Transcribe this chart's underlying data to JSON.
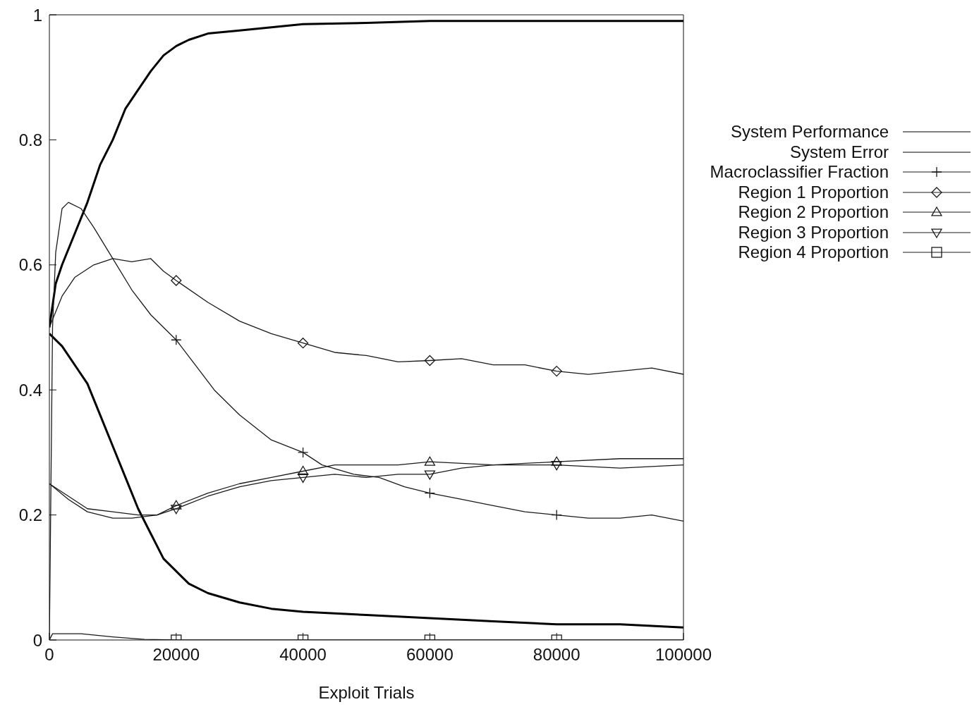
{
  "chart_data": {
    "type": "line",
    "xlabel": "Exploit Trials",
    "xlim": [
      0,
      100000
    ],
    "xticks": [
      0,
      20000,
      40000,
      60000,
      80000,
      100000
    ],
    "ylim": [
      0,
      1
    ],
    "yticks": [
      0,
      0.2,
      0.4,
      0.6,
      0.8,
      1
    ],
    "grid": false,
    "legend": "right",
    "line_style": "solid",
    "series": [
      {
        "name": "System Performance",
        "color": "#000000",
        "marker": "none",
        "x": [
          0,
          1000,
          2000,
          4000,
          6000,
          8000,
          10000,
          12000,
          14000,
          16000,
          18000,
          20000,
          22000,
          25000,
          30000,
          35000,
          40000,
          50000,
          60000,
          80000,
          100000
        ],
        "values": [
          0.5,
          0.57,
          0.6,
          0.65,
          0.7,
          0.76,
          0.8,
          0.85,
          0.88,
          0.91,
          0.935,
          0.95,
          0.96,
          0.97,
          0.975,
          0.98,
          0.985,
          0.987,
          0.99,
          0.99,
          0.99
        ]
      },
      {
        "name": "System Error",
        "color": "#000000",
        "marker": "none",
        "x": [
          0,
          2000,
          4000,
          6000,
          8000,
          10000,
          12000,
          14000,
          16000,
          18000,
          20000,
          22000,
          25000,
          30000,
          35000,
          40000,
          50000,
          60000,
          70000,
          80000,
          90000,
          100000
        ],
        "values": [
          0.49,
          0.47,
          0.44,
          0.41,
          0.36,
          0.31,
          0.26,
          0.21,
          0.17,
          0.13,
          0.11,
          0.09,
          0.075,
          0.06,
          0.05,
          0.045,
          0.04,
          0.035,
          0.03,
          0.025,
          0.025,
          0.02
        ]
      },
      {
        "name": "Macroclassifier Fraction",
        "color": "#1a1a1a",
        "x": [
          0,
          500,
          1000,
          2000,
          3000,
          5000,
          7000,
          10000,
          13000,
          16000,
          20000,
          23000,
          26000,
          30000,
          35000,
          40000,
          43000,
          48000,
          52000,
          56000,
          60000,
          65000,
          70000,
          75000,
          80000,
          85000,
          90000,
          95000,
          100000
        ],
        "values": [
          0,
          0.5,
          0.62,
          0.69,
          0.7,
          0.69,
          0.66,
          0.61,
          0.56,
          0.52,
          0.48,
          0.44,
          0.4,
          0.36,
          0.32,
          0.3,
          0.28,
          0.265,
          0.26,
          0.245,
          0.235,
          0.225,
          0.215,
          0.205,
          0.2,
          0.195,
          0.195,
          0.2,
          0.19
        ]
      },
      {
        "type": "scatter",
        "color": "#1a1a1a",
        "marker": "cross",
        "x": [
          20000,
          40000,
          60000,
          80000
        ],
        "values": [
          0.48,
          0.3,
          0.235,
          0.2
        ]
      },
      {
        "name": "Region 1 Proportion",
        "color": "#1a1a1a",
        "x": [
          0,
          2000,
          4000,
          7000,
          10000,
          13000,
          16000,
          18000,
          20000,
          25000,
          30000,
          35000,
          40000,
          45000,
          50000,
          55000,
          60000,
          65000,
          70000,
          75000,
          80000,
          85000,
          90000,
          95000,
          100000
        ],
        "values": [
          0.5,
          0.55,
          0.58,
          0.6,
          0.61,
          0.605,
          0.61,
          0.59,
          0.575,
          0.54,
          0.51,
          0.49,
          0.475,
          0.46,
          0.455,
          0.445,
          0.447,
          0.45,
          0.44,
          0.44,
          0.43,
          0.425,
          0.43,
          0.435,
          0.425
        ]
      },
      {
        "type": "scatter",
        "color": "#1a1a1a",
        "marker": "diamond",
        "x": [
          20000,
          40000,
          60000,
          80000
        ],
        "values": [
          0.575,
          0.475,
          0.447,
          0.43
        ]
      },
      {
        "name": "Region 2 Proportion",
        "color": "#1a1a1a",
        "x": [
          0,
          3000,
          6000,
          10000,
          14000,
          17000,
          20000,
          25000,
          30000,
          35000,
          40000,
          45000,
          50000,
          55000,
          60000,
          70000,
          80000,
          90000,
          100000
        ],
        "values": [
          0.25,
          0.23,
          0.21,
          0.205,
          0.2,
          0.2,
          0.215,
          0.235,
          0.25,
          0.26,
          0.27,
          0.28,
          0.28,
          0.28,
          0.285,
          0.28,
          0.285,
          0.29,
          0.29
        ]
      },
      {
        "type": "scatter",
        "color": "#1a1a1a",
        "marker": "triangle",
        "x": [
          20000,
          40000,
          60000,
          80000
        ],
        "values": [
          0.215,
          0.27,
          0.285,
          0.285
        ]
      },
      {
        "name": "Region 3 Proportion",
        "color": "#1a1a1a",
        "x": [
          0,
          3000,
          6000,
          10000,
          13000,
          17000,
          20000,
          25000,
          30000,
          35000,
          40000,
          45000,
          50000,
          55000,
          60000,
          65000,
          70000,
          80000,
          90000,
          100000
        ],
        "values": [
          0.25,
          0.225,
          0.205,
          0.195,
          0.195,
          0.2,
          0.21,
          0.23,
          0.245,
          0.255,
          0.26,
          0.265,
          0.26,
          0.265,
          0.265,
          0.275,
          0.28,
          0.28,
          0.275,
          0.28
        ]
      },
      {
        "type": "scatter",
        "color": "#1a1a1a",
        "marker": "triangle-down",
        "x": [
          20000,
          40000,
          60000,
          80000
        ],
        "values": [
          0.21,
          0.26,
          0.265,
          0.28
        ]
      },
      {
        "name": "Region 4 Proportion",
        "color": "#1a1a1a",
        "x": [
          0,
          500,
          5000,
          10000,
          15000,
          20000,
          40000,
          60000,
          80000,
          100000
        ],
        "values": [
          0,
          0.01,
          0.01,
          0.005,
          0.001,
          0,
          0,
          0,
          0,
          0
        ]
      },
      {
        "type": "scatter",
        "color": "#1a1a1a",
        "marker": "square",
        "x": [
          20000,
          40000,
          60000,
          80000
        ],
        "values": [
          0,
          0,
          0,
          0
        ]
      }
    ]
  }
}
